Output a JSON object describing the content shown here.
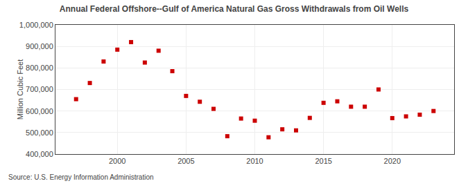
{
  "chart_data": {
    "type": "scatter",
    "title": "Annual Federal Offshore--Gulf of America Natural Gas Gross Withdrawals from Oil Wells",
    "ylabel": "Million Cubic Feet",
    "annotations": [
      "Source: U.S. Energy Information Administration"
    ],
    "x": [
      1997,
      1998,
      1999,
      2000,
      2001,
      2002,
      2003,
      2004,
      2005,
      2006,
      2007,
      2008,
      2009,
      2010,
      2011,
      2012,
      2013,
      2014,
      2015,
      2016,
      2017,
      2018,
      2019,
      2020,
      2021,
      2022,
      2023
    ],
    "values": [
      655000,
      730000,
      830000,
      885000,
      920000,
      825000,
      880000,
      785000,
      670000,
      643000,
      610000,
      483000,
      565000,
      555000,
      478000,
      515000,
      510000,
      568000,
      638000,
      645000,
      620000,
      620000,
      700000,
      567000,
      575000,
      583000,
      600000
    ],
    "color": "#cc0000",
    "marker": "square",
    "xlim": [
      1995.5,
      2024.5
    ],
    "xticks": [
      2000,
      2005,
      2010,
      2015,
      2020
    ],
    "ylim": [
      400000,
      1000000
    ],
    "yticks": [
      {
        "value": 400000,
        "label": "400,000"
      },
      {
        "value": 500000,
        "label": "500,000"
      },
      {
        "value": 600000,
        "label": "600,000"
      },
      {
        "value": 700000,
        "label": "700,000"
      },
      {
        "value": 800000,
        "label": "800,000"
      },
      {
        "value": 900000,
        "label": "900,000"
      },
      {
        "value": 1000000,
        "label": "1,000,000"
      }
    ],
    "grid": true
  }
}
